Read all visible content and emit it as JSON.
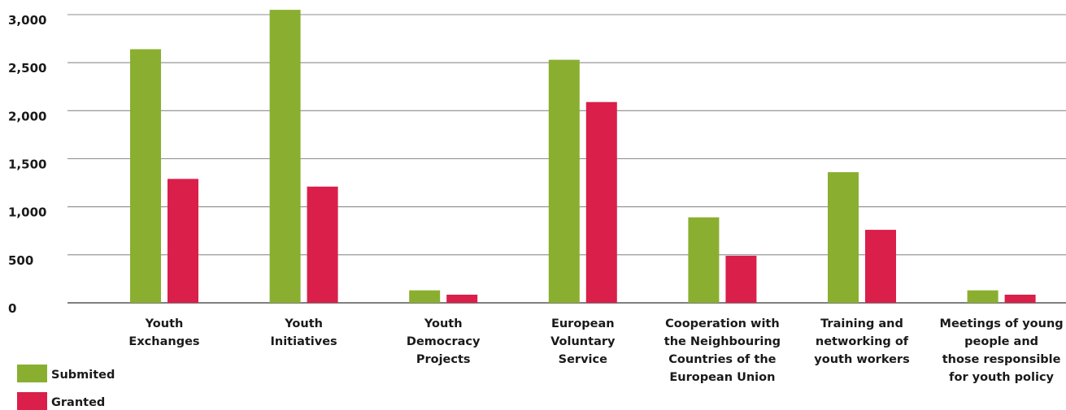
{
  "chart_data": {
    "type": "bar",
    "title": "",
    "xlabel": "",
    "ylabel": "",
    "ylim": [
      0,
      3000
    ],
    "yticks": [
      0,
      500,
      1000,
      1500,
      2000,
      2500,
      3000
    ],
    "ytick_labels": [
      "0",
      "500",
      "1,000",
      "1,500",
      "2,000",
      "2,500",
      "3,000"
    ],
    "grid": true,
    "legend_position": "bottom-left",
    "categories": [
      [
        "Youth",
        "Exchanges"
      ],
      [
        "Youth",
        "Initiatives"
      ],
      [
        "Youth",
        "Democracy",
        "Projects"
      ],
      [
        "European",
        "Voluntary",
        "Service"
      ],
      [
        "Cooperation with",
        "the Neighbouring",
        "Countries of the",
        "European Union"
      ],
      [
        "Training and",
        "networking of",
        "youth workers"
      ],
      [
        "Meetings of young",
        "people and",
        "those responsible",
        "for youth policy"
      ]
    ],
    "series": [
      {
        "name": "Submited",
        "color": "#8aaf30",
        "values": [
          2640,
          3050,
          130,
          2530,
          890,
          1360,
          130
        ]
      },
      {
        "name": "Granted",
        "color": "#d91f4a",
        "values": [
          1290,
          1210,
          85,
          2090,
          490,
          760,
          85
        ]
      }
    ]
  }
}
